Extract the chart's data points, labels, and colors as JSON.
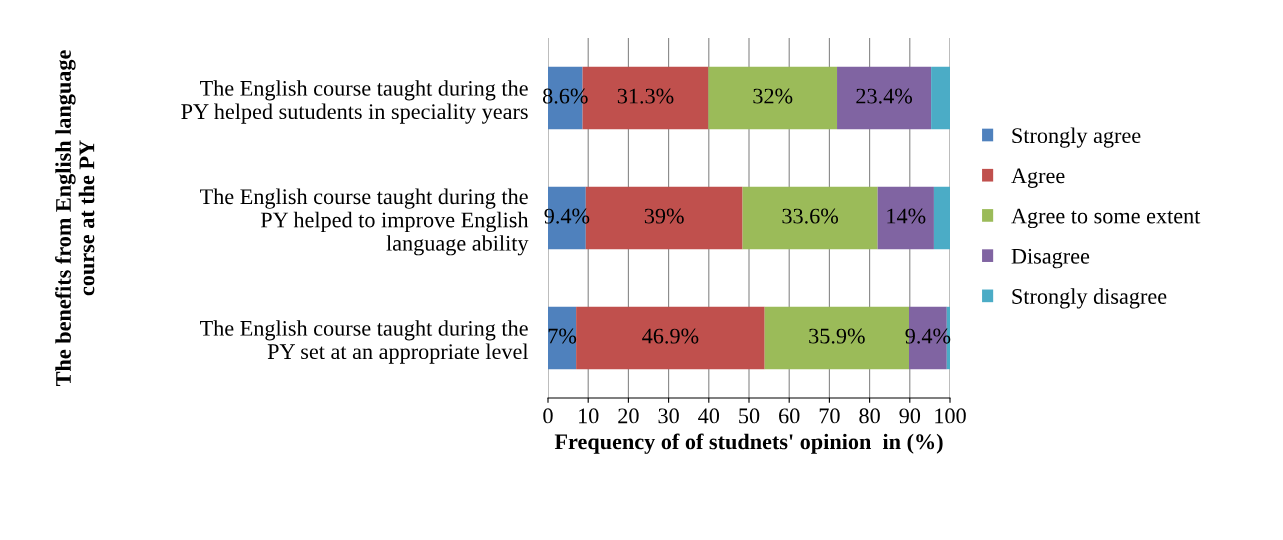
{
  "chart_data": {
    "type": "bar",
    "orientation": "horizontal",
    "stacked": true,
    "categories": [
      "The English course taught during the\nPY helped sutudents in speciality years",
      "The English course taught during the\nPY helped to improve English\nlanguage ability",
      "The English course taught during the\nPY set at an appropriate level"
    ],
    "series": [
      {
        "name": "Strongly agree",
        "color": "#4f81bd",
        "values": [
          8.6,
          9.4,
          7
        ],
        "value_labels": [
          "8.6%",
          "9.4%",
          "7%"
        ]
      },
      {
        "name": "Agree",
        "color": "#c0504d",
        "values": [
          31.3,
          39,
          46.9
        ],
        "value_labels": [
          "31.3%",
          "39%",
          "46.9%"
        ]
      },
      {
        "name": "Agree to some extent",
        "color": "#9bbb59",
        "values": [
          32,
          33.6,
          35.9
        ],
        "value_labels": [
          "32%",
          "33.6%",
          "35.9%"
        ]
      },
      {
        "name": "Disagree",
        "color": "#8064a2",
        "values": [
          23.4,
          14,
          9.4
        ],
        "value_labels": [
          "23.4%",
          "14%",
          "9.4%"
        ]
      },
      {
        "name": "Strongly disagree",
        "color": "#4bacc6",
        "values": [
          4.7,
          4,
          0.8
        ],
        "value_labels": [
          null,
          null,
          null
        ]
      }
    ],
    "xlim": [
      0,
      100
    ],
    "xticks": [
      0,
      10,
      20,
      30,
      40,
      50,
      60,
      70,
      80,
      90,
      100
    ],
    "xlabel": "Frequency of of studnets' opinion  in (%)",
    "ylabel": "The benefits from English language\ncourse at the PY",
    "grid": "x",
    "legend": "right"
  }
}
